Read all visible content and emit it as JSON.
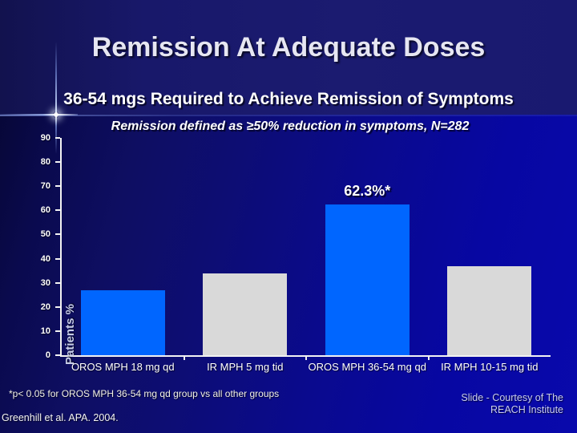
{
  "slide": {
    "title": "Remission At Adequate Doses",
    "subtitle": "36-54 mgs Required to Achieve Remission of Symptoms",
    "definition_note": "Remission defined as ≥50% reduction in symptoms, N=282",
    "footnote": "*p< 0.05 for OROS MPH 36-54 mg qd group vs all other groups",
    "citation": "Greenhill et al. APA. 2004.",
    "courtesy_line1": "Slide - Courtesy of The",
    "courtesy_line2": "REACH Institute"
  },
  "colors": {
    "highlight_bar": "#0066FF",
    "comparison_bar": "#D9D9D9",
    "axis": "#F2F2F2",
    "background_top": "#1B1B70",
    "background_body_right": "#0909AC",
    "background_body_left": "#070738"
  },
  "chart_data": {
    "type": "bar",
    "title": "Remission At Adequate Doses",
    "subtitle": "36-54 mgs Required to Achieve Remission of Symptoms",
    "note": "Remission defined as ≥50% reduction in symptoms, N=282",
    "categories": [
      "OROS MPH 18 mg qd",
      "IR MPH 5 mg tid",
      "OROS MPH 36-54 mg qd",
      "IR MPH 10-15 mg tid"
    ],
    "values": [
      27,
      34,
      62.3,
      37
    ],
    "bar_colors": [
      "#0066FF",
      "#D9D9D9",
      "#0066FF",
      "#D9D9D9"
    ],
    "annotations": [
      {
        "category_index": 2,
        "text": "62.3%*"
      }
    ],
    "xlabel": "",
    "ylabel": "Patients %",
    "ylim": [
      0,
      90
    ],
    "yticks": [
      0,
      10,
      20,
      30,
      40,
      50,
      60,
      70,
      80,
      90
    ],
    "grid": false,
    "legend": "none"
  }
}
